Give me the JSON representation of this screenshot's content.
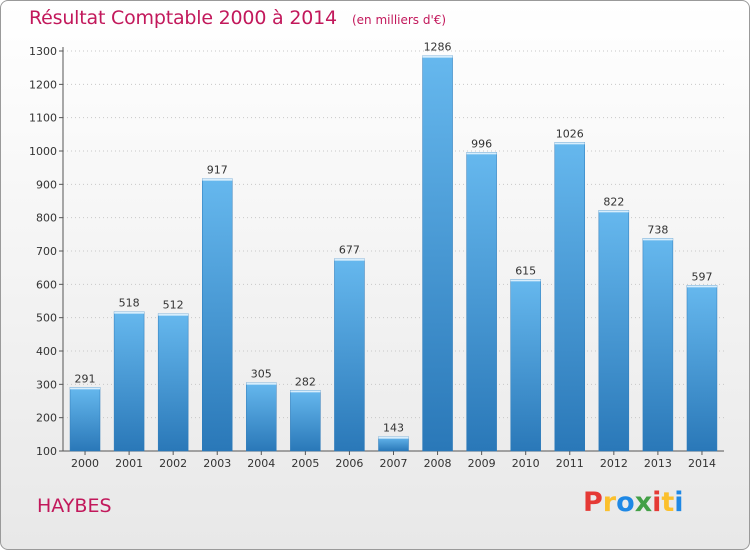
{
  "header": {
    "title": "Résultat Comptable 2000 à 2014",
    "subtitle": "(en milliers d'€)"
  },
  "footer": {
    "place": "HAYBES",
    "brand": "Proxiti",
    "brand_colors": [
      "#e53935",
      "#fbc02d",
      "#1e88e5",
      "#43a047",
      "#e53935",
      "#fbc02d",
      "#1e88e5"
    ]
  },
  "colors": {
    "bar_light": "#66b8ee",
    "bar_dark": "#2a78b8",
    "title": "#c2185b"
  },
  "chart_data": {
    "type": "bar",
    "title": "Résultat Comptable 2000 à 2014",
    "subtitle": "(en milliers d'€)",
    "categories": [
      "2000",
      "2001",
      "2002",
      "2003",
      "2004",
      "2005",
      "2006",
      "2007",
      "2008",
      "2009",
      "2010",
      "2011",
      "2012",
      "2013",
      "2014"
    ],
    "values": [
      291,
      518,
      512,
      917,
      305,
      282,
      677,
      143,
      1286,
      996,
      615,
      1026,
      822,
      738,
      597
    ],
    "ylim": [
      100,
      1300
    ],
    "yticks": [
      100,
      200,
      300,
      400,
      500,
      600,
      700,
      800,
      900,
      1000,
      1100,
      1200,
      1300
    ],
    "grid": true,
    "xlabel": "",
    "ylabel": ""
  }
}
